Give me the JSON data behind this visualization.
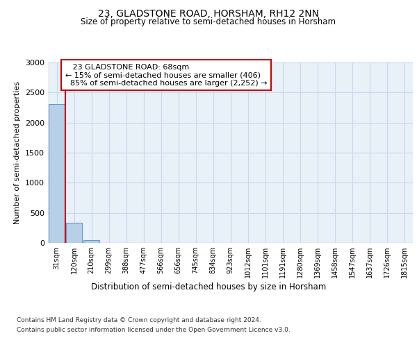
{
  "title": "23, GLADSTONE ROAD, HORSHAM, RH12 2NN",
  "subtitle": "Size of property relative to semi-detached houses in Horsham",
  "xlabel": "Distribution of semi-detached houses by size in Horsham",
  "ylabel": "Number of semi-detached properties",
  "property_label": "23 GLADSTONE ROAD: 68sqm",
  "pct_smaller": 15,
  "count_smaller": 406,
  "pct_larger": 85,
  "count_larger": "2,252",
  "bin_labels": [
    "31sqm",
    "120sqm",
    "210sqm",
    "299sqm",
    "388sqm",
    "477sqm",
    "566sqm",
    "656sqm",
    "745sqm",
    "834sqm",
    "923sqm",
    "1012sqm",
    "1101sqm",
    "1191sqm",
    "1280sqm",
    "1369sqm",
    "1458sqm",
    "1547sqm",
    "1637sqm",
    "1726sqm",
    "1815sqm"
  ],
  "bar_values": [
    2310,
    336,
    50,
    4,
    1,
    0,
    0,
    0,
    0,
    0,
    0,
    0,
    0,
    0,
    0,
    0,
    0,
    0,
    0,
    0,
    0
  ],
  "bar_color": "#b8cfe8",
  "bar_edge_color": "#6699cc",
  "red_line_color": "#cc0000",
  "ylim": [
    0,
    3000
  ],
  "yticks": [
    0,
    500,
    1000,
    1500,
    2000,
    2500,
    3000
  ],
  "grid_color": "#c8d8ec",
  "background_color": "#e8f0f8",
  "footer_line1": "Contains HM Land Registry data © Crown copyright and database right 2024.",
  "footer_line2": "Contains public sector information licensed under the Open Government Licence v3.0."
}
